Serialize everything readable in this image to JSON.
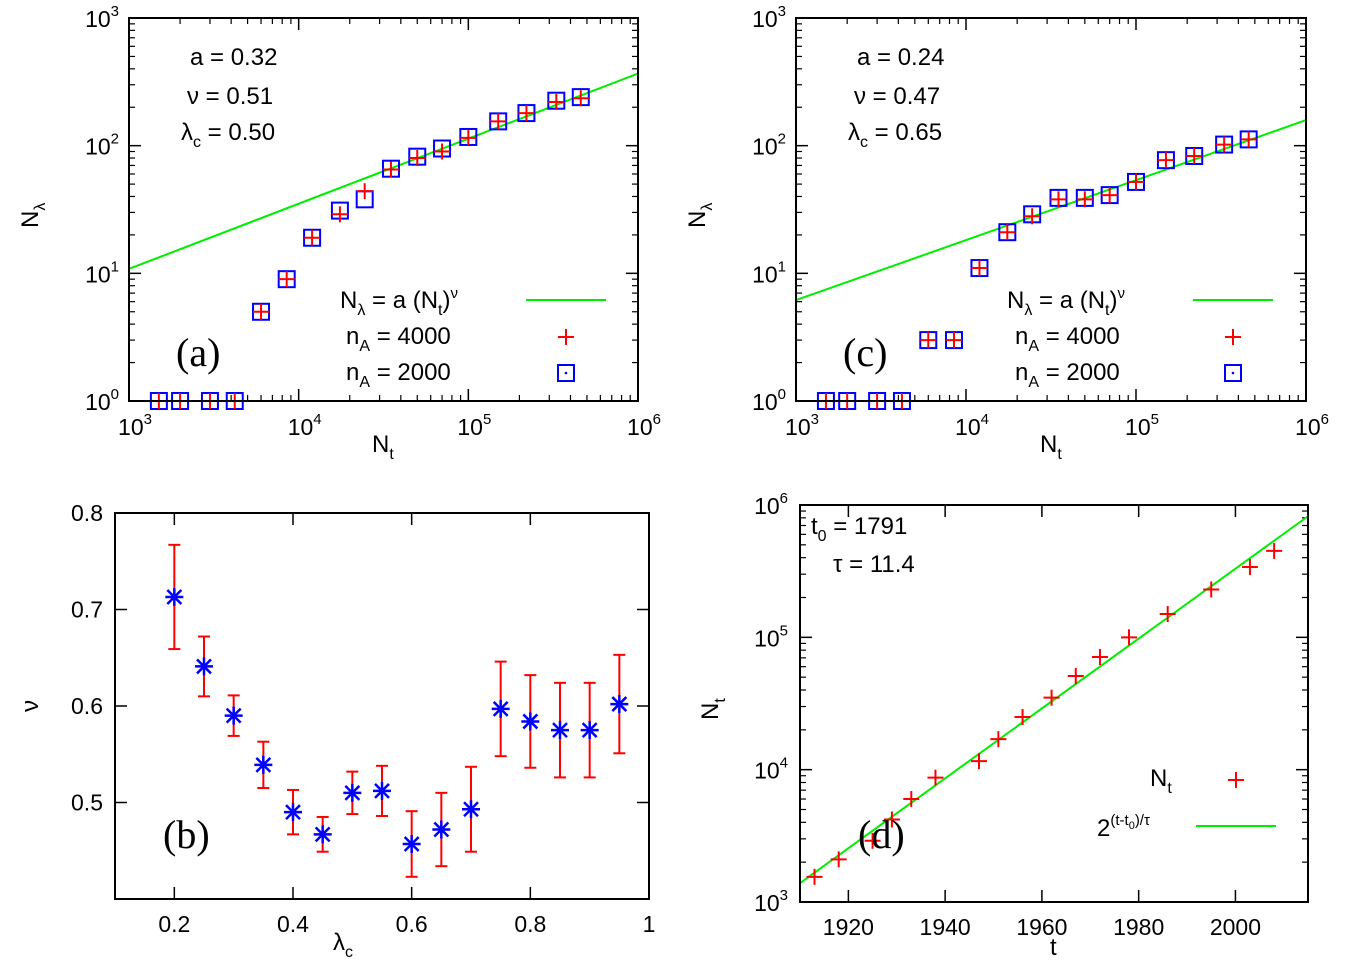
{
  "chart_data": [
    {
      "type": "scatter",
      "panel_label": "(a)",
      "xscale": "log",
      "yscale": "log",
      "xlim": [
        1000,
        1000000
      ],
      "ylim": [
        1,
        1000
      ],
      "xlabel": "N",
      "xlabel_sub": "t",
      "ylabel": "N",
      "ylabel_sub": "λ",
      "xticks": [
        {
          "base": "10",
          "exp": "3"
        },
        {
          "base": "10",
          "exp": "4"
        },
        {
          "base": "10",
          "exp": "5"
        },
        {
          "base": "10",
          "exp": "6"
        }
      ],
      "yticks": [
        {
          "base": "10",
          "exp": "0"
        },
        {
          "base": "10",
          "exp": "1"
        },
        {
          "base": "10",
          "exp": "2"
        },
        {
          "base": "10",
          "exp": "3"
        }
      ],
      "annotations": [
        "a = 0.32",
        "ν = 0.51",
        "λ",
        "c",
        " = 0.50"
      ],
      "fit": {
        "a": 0.32,
        "nu": 0.51,
        "lambda_c": 0.5
      },
      "legend": {
        "fit": {
          "pre": "N",
          "sub1": "λ",
          "mid": " = a (N",
          "sub2": "t",
          "post": ")",
          "sup": "ν"
        },
        "series1": {
          "pre": "n",
          "sub": "A",
          "post": " = 4000"
        },
        "series2": {
          "pre": "n",
          "sub": "A",
          "post": " = 2000"
        }
      },
      "series": [
        {
          "name": "n_A = 4000",
          "marker": "plus",
          "color": "#ff0000",
          "x": [
            1500,
            2000,
            3000,
            4200,
            6000,
            8500,
            12000,
            17500,
            24500,
            35000,
            50000,
            70000,
            100000,
            150000,
            220000,
            330000,
            460000
          ],
          "y": [
            1,
            1,
            1,
            1,
            5,
            9,
            19,
            29,
            44,
            65,
            80,
            90,
            115,
            155,
            180,
            220,
            235
          ]
        },
        {
          "name": "n_A = 2000",
          "marker": "square",
          "color": "#0000ff",
          "x": [
            1500,
            2000,
            3000,
            4200,
            6000,
            8500,
            12000,
            17500,
            24500,
            35000,
            50000,
            70000,
            100000,
            150000,
            220000,
            330000,
            460000
          ],
          "y": [
            1,
            1,
            1,
            1,
            5,
            9,
            19,
            31,
            38,
            66,
            82,
            95,
            117,
            155,
            180,
            225,
            240
          ]
        }
      ]
    },
    {
      "type": "scatter",
      "panel_label": "(c)",
      "xscale": "log",
      "yscale": "log",
      "xlim": [
        1000,
        1000000
      ],
      "ylim": [
        1,
        1000
      ],
      "xlabel": "N",
      "xlabel_sub": "t",
      "ylabel": "N",
      "ylabel_sub": "λ",
      "xticks": [
        {
          "base": "10",
          "exp": "3"
        },
        {
          "base": "10",
          "exp": "4"
        },
        {
          "base": "10",
          "exp": "5"
        },
        {
          "base": "10",
          "exp": "6"
        }
      ],
      "yticks": [
        {
          "base": "10",
          "exp": "0"
        },
        {
          "base": "10",
          "exp": "1"
        },
        {
          "base": "10",
          "exp": "2"
        },
        {
          "base": "10",
          "exp": "3"
        }
      ],
      "annotations": [
        "a = 0.24",
        "ν = 0.47",
        "λ",
        "c",
        " = 0.65"
      ],
      "fit": {
        "a": 0.24,
        "nu": 0.47,
        "lambda_c": 0.65
      },
      "legend": {
        "fit": {
          "pre": "N",
          "sub1": "λ",
          "mid": " = a (N",
          "sub2": "t",
          "post": ")",
          "sup": "ν"
        },
        "series1": {
          "pre": "n",
          "sub": "A",
          "post": " = 4000"
        },
        "series2": {
          "pre": "n",
          "sub": "A",
          "post": " = 2000"
        }
      },
      "series": [
        {
          "name": "n_A = 4000",
          "marker": "plus",
          "color": "#ff0000",
          "x": [
            1500,
            2000,
            3000,
            4200,
            6000,
            8500,
            12000,
            17500,
            24500,
            35000,
            50000,
            70000,
            100000,
            150000,
            220000,
            330000,
            460000
          ],
          "y": [
            1,
            1,
            1,
            1,
            3,
            3,
            11,
            21,
            28,
            38,
            38,
            41,
            52,
            77,
            83,
            102,
            112
          ]
        },
        {
          "name": "n_A = 2000",
          "marker": "square",
          "color": "#0000ff",
          "x": [
            1500,
            2000,
            3000,
            4200,
            6000,
            8500,
            12000,
            17500,
            24500,
            35000,
            50000,
            70000,
            100000,
            150000,
            220000,
            330000,
            460000
          ],
          "y": [
            1,
            1,
            1,
            1,
            3,
            3,
            11,
            21,
            29,
            39,
            39,
            41,
            52,
            77,
            83,
            102,
            112
          ]
        }
      ]
    },
    {
      "type": "scatter",
      "panel_label": "(b)",
      "xscale": "linear",
      "yscale": "linear",
      "xlim": [
        0.1,
        1.0
      ],
      "ylim": [
        0.4,
        0.8
      ],
      "xlabel": "λ",
      "xlabel_sub": "c",
      "ylabel": "ν",
      "ylabel_sub": "",
      "xticks": [
        "0.2",
        "0.4",
        "0.6",
        "0.8",
        "1"
      ],
      "yticks": [
        "0.5",
        "0.6",
        "0.7",
        "0.8"
      ],
      "series": [
        {
          "name": "nu",
          "marker": "asterisk",
          "color": "#0000ff",
          "errcolor": "#ff0000",
          "x": [
            0.2,
            0.25,
            0.3,
            0.35,
            0.4,
            0.45,
            0.5,
            0.55,
            0.6,
            0.65,
            0.7,
            0.75,
            0.8,
            0.85,
            0.9,
            0.95
          ],
          "y": [
            0.713,
            0.641,
            0.59,
            0.539,
            0.49,
            0.467,
            0.51,
            0.512,
            0.457,
            0.472,
            0.493,
            0.597,
            0.584,
            0.575,
            0.575,
            0.602
          ],
          "err": [
            0.054,
            0.031,
            0.021,
            0.024,
            0.023,
            0.018,
            0.022,
            0.026,
            0.034,
            0.038,
            0.044,
            0.049,
            0.048,
            0.049,
            0.049,
            0.051
          ]
        }
      ]
    },
    {
      "type": "scatter",
      "panel_label": "(d)",
      "xscale": "linear",
      "yscale": "log",
      "xlim": [
        1910,
        2015
      ],
      "ylim": [
        1000,
        1000000
      ],
      "xlabel": "t",
      "xlabel_sub": "",
      "ylabel": "N",
      "ylabel_sub": "t",
      "xticks": [
        "1920",
        "1940",
        "1960",
        "1980",
        "2000"
      ],
      "yticks": [
        {
          "base": "10",
          "exp": "3"
        },
        {
          "base": "10",
          "exp": "4"
        },
        {
          "base": "10",
          "exp": "5"
        },
        {
          "base": "10",
          "exp": "6"
        }
      ],
      "annotations": [
        "t",
        "0",
        " = 1791",
        "τ = 11.4"
      ],
      "fit": {
        "t0": 1791,
        "tau": 11.4
      },
      "legend": {
        "series1": {
          "pre": "N",
          "sub": "t",
          "post": ""
        },
        "fit": {
          "pre": "2",
          "sup": "(t-t",
          "supsub": "0",
          "suppost": ")/τ"
        }
      },
      "series": [
        {
          "name": "N_t",
          "marker": "plus",
          "color": "#ff0000",
          "x": [
            1913,
            1918,
            1925,
            1929,
            1933,
            1938,
            1947,
            1951,
            1956,
            1962,
            1967,
            1972,
            1978,
            1986,
            1995,
            2003,
            2008
          ],
          "y": [
            1550,
            2100,
            2900,
            4200,
            6000,
            8700,
            11600,
            17000,
            25000,
            35000,
            51000,
            71000,
            100000,
            150000,
            230000,
            340000,
            450000
          ]
        }
      ]
    }
  ]
}
